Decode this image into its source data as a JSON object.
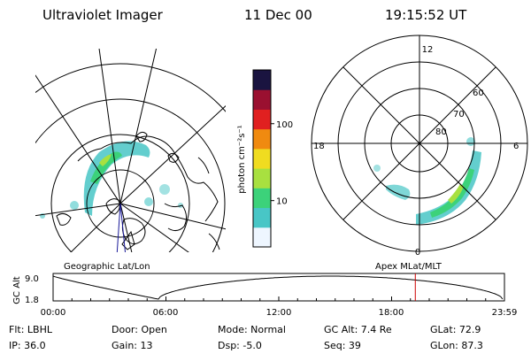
{
  "header": {
    "title": "Ultraviolet Imager",
    "date": "11 Dec 00",
    "time": "19:15:52 UT"
  },
  "geo_map": {
    "label": "Geographic Lat/Lon"
  },
  "colorbar": {
    "unit_label": "photon cm⁻²s⁻¹",
    "ticks": [
      {
        "value": 100,
        "label": "100"
      },
      {
        "value": 10,
        "label": "10"
      }
    ],
    "colors": [
      "#eef6ff",
      "#48c6c6",
      "#3cd27a",
      "#a8e040",
      "#f0dc20",
      "#f08a10",
      "#e02020",
      "#9a1030",
      "#1a1440"
    ]
  },
  "polar_plot": {
    "label": "Apex MLat/MLT",
    "mlt_labels": {
      "top": "12",
      "left": "18",
      "right": "6",
      "bottom": "0"
    },
    "lat_labels": [
      "60",
      "70",
      "80"
    ]
  },
  "timeline": {
    "ylabel": "GC Alt",
    "ymax": "9.0",
    "ymin": "1.8",
    "ymax_value": 9.0,
    "ymin_value": 1.8,
    "x_labels": [
      "00:00",
      "06:00",
      "12:00",
      "18:00",
      "23:59"
    ],
    "marker_time_hours": 19.26,
    "marker_color": "#cc0000"
  },
  "info": {
    "flt": "Flt: LBHL",
    "ip": "IP: 36.0",
    "door": "Door: Open",
    "gain": "Gain: 13",
    "mode": "Mode: Normal",
    "dsp": "Dsp:   -5.0",
    "gc_alt": "GC Alt: 7.4 Re",
    "seq": "Seq: 39",
    "glat": "GLat:  72.9",
    "glon": "GLon:  87.3"
  }
}
